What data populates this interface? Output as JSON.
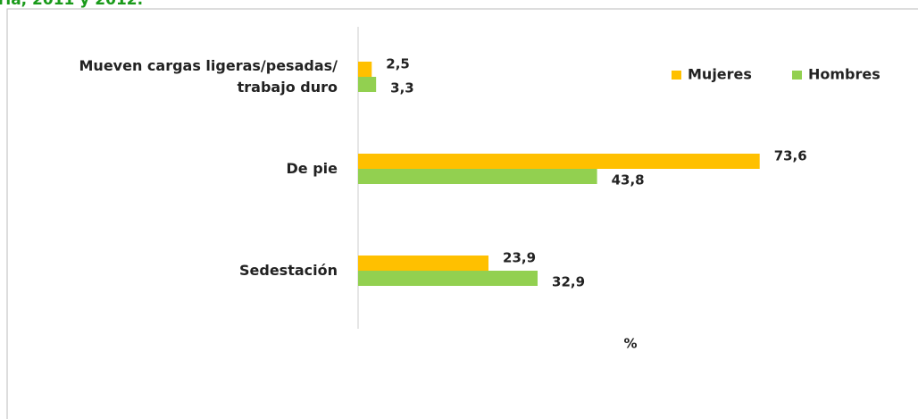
{
  "chart_data": {
    "type": "bar",
    "orientation": "horizontal",
    "title": "ria, 2011 y 2012.",
    "categories": [
      "Mueven cargas ligeras/pesadas/ trabajo duro",
      "De pie",
      "Sedestación"
    ],
    "series": [
      {
        "name": "Mujeres",
        "color": "#ffc000",
        "values": [
          2.5,
          73.6,
          23.9
        ],
        "value_labels": [
          "2,5",
          "73,6",
          "23,9"
        ]
      },
      {
        "name": "Hombres",
        "color": "#92d050",
        "values": [
          3.3,
          43.8,
          32.9
        ],
        "value_labels": [
          "3,3",
          "43,8",
          "32,9"
        ]
      }
    ],
    "xlim": [
      0,
      100
    ],
    "xlabel": "%",
    "legend": "top-right"
  }
}
